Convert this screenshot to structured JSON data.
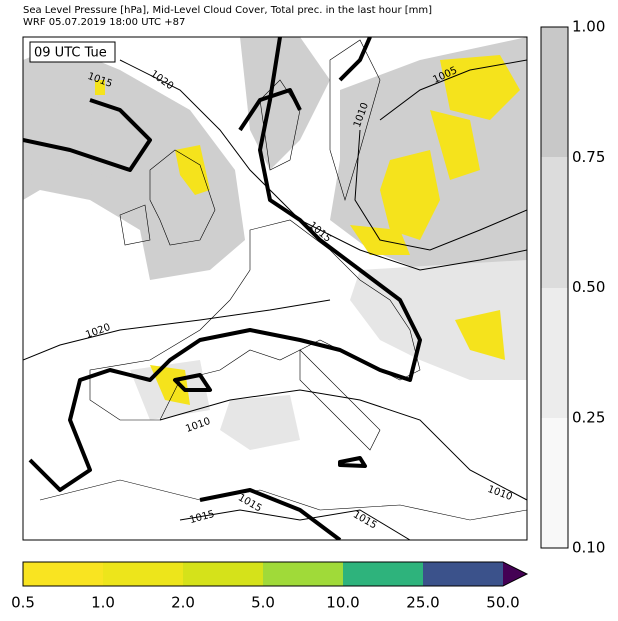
{
  "header": {
    "title": "Sea Level Pressure [hPa], Mid-Level Cloud Cover, Total prec. in the last hour [mm]",
    "subtitle": "WRF 05.07.2019 18:00 UTC +87"
  },
  "map": {
    "time_label": "09 UTC Tue",
    "isobar_labels": [
      "1015",
      "1020",
      "1005",
      "1010",
      "1015",
      "1020",
      "1010",
      "1010",
      "1015",
      "1015",
      "1015"
    ]
  },
  "cloud_colorbar": {
    "labels": [
      "1.00",
      "0.75",
      "0.50",
      "0.25",
      "0.10"
    ]
  },
  "precip_colorbar": {
    "labels": [
      "0.5",
      "1.0",
      "2.0",
      "5.0",
      "10.0",
      "25.0",
      "50.0"
    ]
  }
}
